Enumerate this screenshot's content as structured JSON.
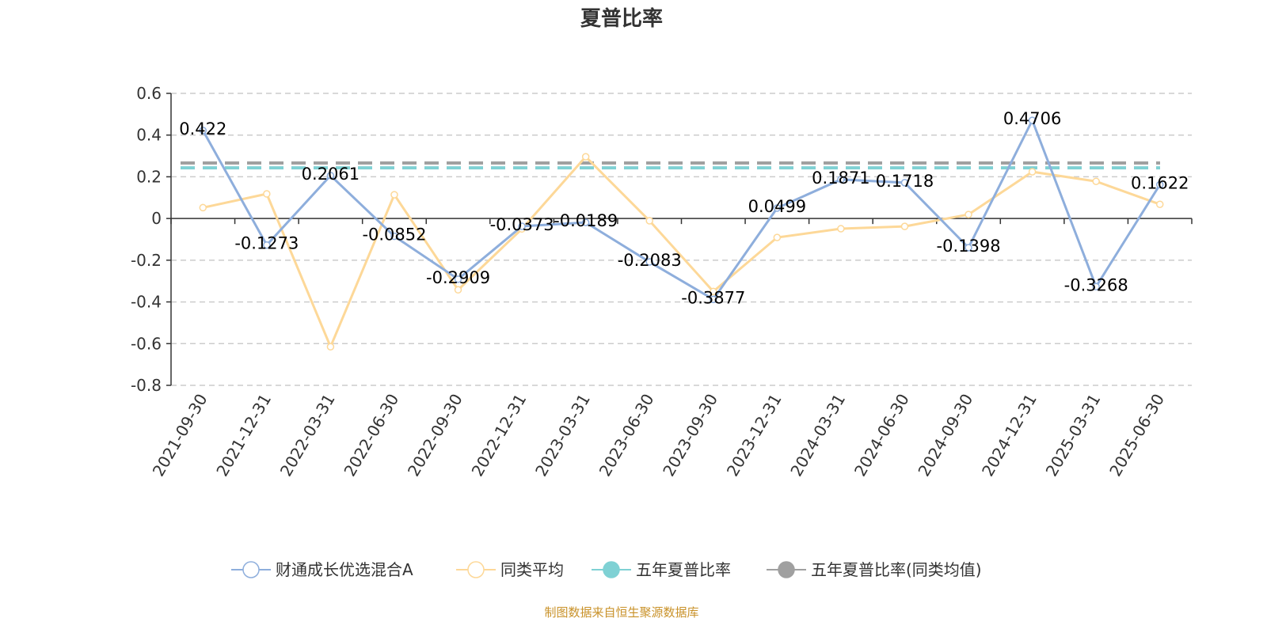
{
  "chart_data": {
    "type": "line",
    "title": "夏普比率",
    "categories": [
      "2021-09-30",
      "2021-12-31",
      "2022-03-31",
      "2022-06-30",
      "2022-09-30",
      "2022-12-31",
      "2023-03-31",
      "2023-06-30",
      "2023-09-30",
      "2023-12-31",
      "2024-03-31",
      "2024-06-30",
      "2024-09-30",
      "2024-12-31",
      "2025-03-31",
      "2025-06-30"
    ],
    "ylim": [
      -0.8,
      0.6
    ],
    "yticks": [
      0.6,
      0.4,
      0.2,
      0,
      -0.2,
      -0.4,
      -0.6,
      -0.8
    ],
    "grid": "horizontal dashed",
    "legend_placement": "bottom",
    "series": [
      {
        "name": "财通成长优选混合A",
        "color": "#8eaedc",
        "show_labels": true,
        "values": [
          0.422,
          -0.1273,
          0.2061,
          -0.0852,
          -0.2909,
          -0.0373,
          -0.0189,
          -0.2083,
          -0.3877,
          0.0499,
          0.1871,
          0.1718,
          -0.1398,
          0.4706,
          -0.3268,
          0.1622
        ]
      },
      {
        "name": "同类平均",
        "color": "#fdd898",
        "values": [
          0.052,
          0.118,
          -0.615,
          0.114,
          -0.342,
          -0.05,
          0.296,
          -0.011,
          -0.35,
          -0.091,
          -0.049,
          -0.038,
          0.019,
          0.224,
          0.178,
          0.068
        ]
      },
      {
        "name": "五年夏普比率",
        "color": "#7fd1d4",
        "type": "dashed-constant",
        "value": 0.243
      },
      {
        "name": "五年夏普比率(同类均值)",
        "color": "#a0a0a0",
        "type": "dashed-constant",
        "value": 0.266
      }
    ]
  },
  "footer": {
    "source": "制图数据来自恒生聚源数据库"
  }
}
